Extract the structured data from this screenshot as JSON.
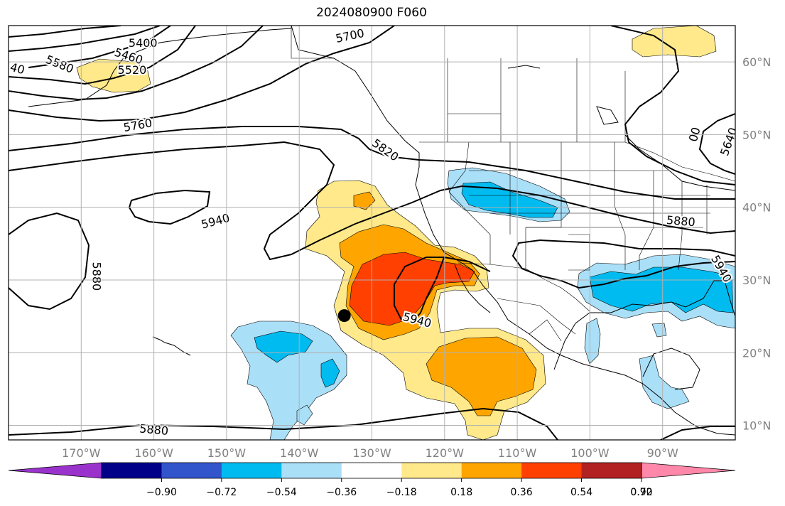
{
  "title": "2024080900 F060",
  "projection": "plate-carree",
  "extent": {
    "lon_min": -180,
    "lon_max": -80,
    "lat_min": 8,
    "lat_max": 65
  },
  "grid": {
    "lon_step": 10,
    "lat_step": 10,
    "visible": true
  },
  "lon_ticks": [
    {
      "value": -170,
      "label": "170°W"
    },
    {
      "value": -160,
      "label": "160°W"
    },
    {
      "value": -150,
      "label": "150°W"
    },
    {
      "value": -140,
      "label": "140°W"
    },
    {
      "value": -130,
      "label": "130°W"
    },
    {
      "value": -120,
      "label": "120°W"
    },
    {
      "value": -110,
      "label": "110°W"
    },
    {
      "value": -100,
      "label": "100°W"
    },
    {
      "value": -90,
      "label": "90°W"
    }
  ],
  "lat_ticks": [
    {
      "value": 10,
      "label": "10°N"
    },
    {
      "value": 20,
      "label": "20°N"
    },
    {
      "value": 30,
      "label": "30°N"
    },
    {
      "value": 40,
      "label": "40°N"
    },
    {
      "value": 50,
      "label": "50°N"
    },
    {
      "value": 60,
      "label": "60°N"
    }
  ],
  "colorbar": {
    "extend": "both",
    "under_color": "#9933cc",
    "over_color": "#ff88aa",
    "colors": [
      "#000088",
      "#3355cc",
      "#00bbf0",
      "#aadff8",
      "#ffffff",
      "#ffe98a",
      "#ffa500",
      "#ff4000",
      "#b22222"
    ],
    "tick_labels": [
      "−0.90",
      "−0.72",
      "−0.54",
      "−0.36",
      "−0.18",
      "0.18",
      "0.36",
      "0.54",
      "0.72",
      "0.90"
    ]
  },
  "contour_labels": [
    {
      "text": "5400",
      "lon": -161.5,
      "lat": 62.5,
      "rot": 0
    },
    {
      "text": "5460",
      "lon": -163.5,
      "lat": 60.7,
      "rot": 18
    },
    {
      "text": "5520",
      "lon": -163.0,
      "lat": 58.8,
      "rot": 0
    },
    {
      "text": "5580",
      "lon": -173.0,
      "lat": 59.6,
      "rot": 22
    },
    {
      "text": "40",
      "lon": -178.8,
      "lat": 59.0,
      "rot": 15
    },
    {
      "text": "5700",
      "lon": -133.0,
      "lat": 63.5,
      "rot": -12
    },
    {
      "text": "5760",
      "lon": -162.2,
      "lat": 51.2,
      "rot": -10
    },
    {
      "text": "5820",
      "lon": -128.2,
      "lat": 47.8,
      "rot": 35
    },
    {
      "text": "5940",
      "lon": -151.5,
      "lat": 38.0,
      "rot": -15
    },
    {
      "text": "5880",
      "lon": -168.0,
      "lat": 30.5,
      "rot": 90
    },
    {
      "text": "5940",
      "lon": -123.8,
      "lat": 24.4,
      "rot": 15
    },
    {
      "text": "5880",
      "lon": -87.5,
      "lat": 38.0,
      "rot": 5
    },
    {
      "text": "5940",
      "lon": -82.0,
      "lat": 31.5,
      "rot": 60
    },
    {
      "text": "5880",
      "lon": -160.0,
      "lat": 9.3,
      "rot": 5
    },
    {
      "text": "00",
      "lon": -85.5,
      "lat": 50.0,
      "rot": -75
    },
    {
      "text": "5640",
      "lon": -80.8,
      "lat": 49.0,
      "rot": -70
    }
  ],
  "marker": {
    "lon": -133.8,
    "lat": 25.1,
    "color": "#000000"
  },
  "colors": {
    "grid": "#b0b0b0",
    "contour": "#000000",
    "coast": "#000000"
  }
}
